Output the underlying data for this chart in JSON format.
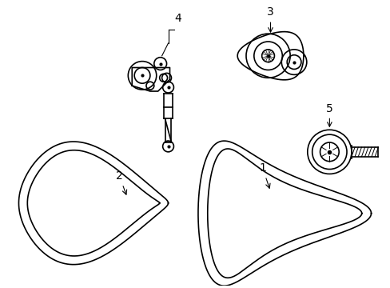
{
  "background_color": "#ffffff",
  "line_color": "#000000",
  "line_width": 1.2,
  "label_fontsize": 10,
  "fig_width": 4.89,
  "fig_height": 3.6,
  "dpi": 100
}
